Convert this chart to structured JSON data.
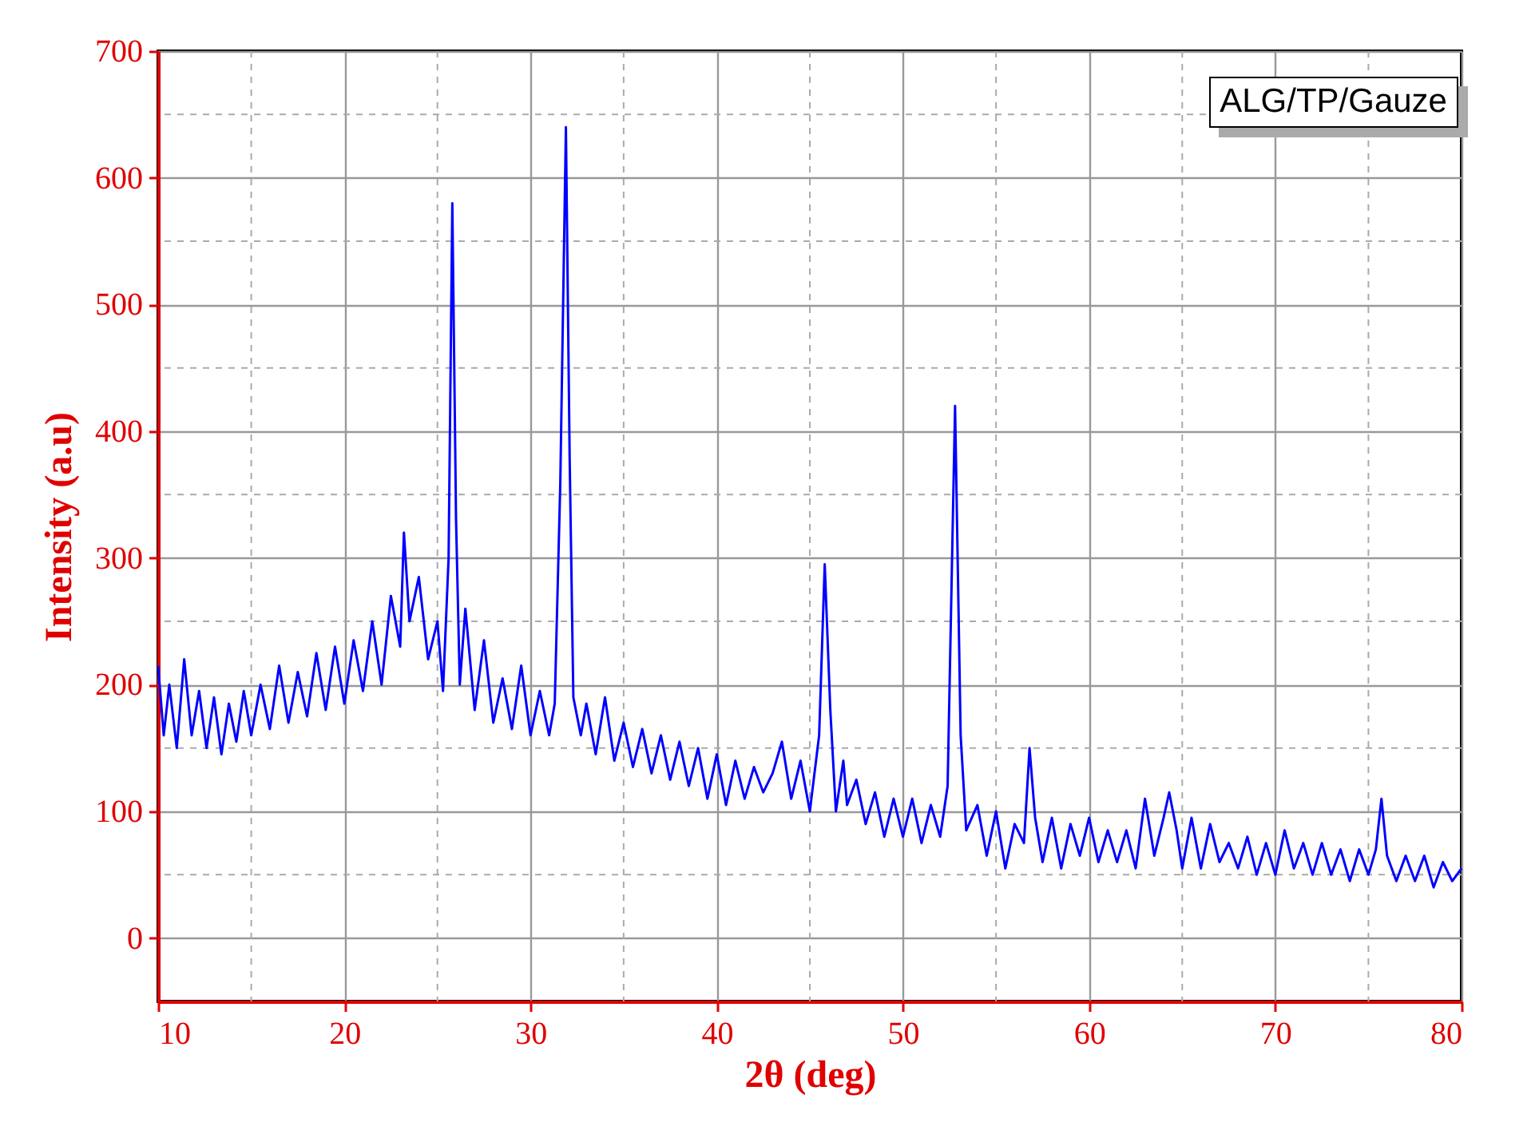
{
  "chart_data": {
    "type": "line",
    "xlabel": "2θ (deg)",
    "ylabel": "Intensity (a.u)",
    "annotations": [
      "ALG/TP/Gauze"
    ],
    "xlim": [
      10,
      80
    ],
    "ylim": [
      -50,
      700
    ],
    "xticks": [
      10,
      20,
      30,
      40,
      50,
      60,
      70,
      80
    ],
    "yticks": [
      0,
      100,
      200,
      300,
      400,
      500,
      600,
      700
    ],
    "grid": true,
    "marker": "none",
    "line_style": "solid",
    "series": [
      {
        "color": "#0000ff",
        "x": [
          10,
          10.3,
          10.6,
          11,
          11.4,
          11.8,
          12.2,
          12.6,
          13,
          13.4,
          13.8,
          14.2,
          14.6,
          15,
          15.5,
          16,
          16.5,
          17,
          17.5,
          18,
          18.5,
          19,
          19.5,
          20,
          20.5,
          21,
          21.5,
          22,
          22.5,
          23,
          23.2,
          23.5,
          24,
          24.5,
          25,
          25.3,
          25.6,
          25.8,
          26,
          26.2,
          26.5,
          27,
          27.5,
          28,
          28.5,
          29,
          29.5,
          30,
          30.5,
          31,
          31.3,
          31.6,
          31.9,
          32.1,
          32.3,
          32.7,
          33,
          33.5,
          34,
          34.5,
          35,
          35.5,
          36,
          36.5,
          37,
          37.5,
          38,
          38.5,
          39,
          39.5,
          40,
          40.5,
          41,
          41.5,
          42,
          42.5,
          43,
          43.5,
          44,
          44.5,
          45,
          45.5,
          45.8,
          46.1,
          46.4,
          46.8,
          47,
          47.5,
          48,
          48.5,
          49,
          49.5,
          50,
          50.5,
          51,
          51.5,
          52,
          52.4,
          52.8,
          53.1,
          53.4,
          54,
          54.5,
          55,
          55.5,
          56,
          56.5,
          56.8,
          57.1,
          57.5,
          58,
          58.5,
          59,
          59.5,
          60,
          60.5,
          61,
          61.5,
          62,
          62.5,
          63,
          63.5,
          64,
          64.3,
          64.7,
          65,
          65.5,
          66,
          66.5,
          67,
          67.5,
          68,
          68.5,
          69,
          69.5,
          70,
          70.5,
          71,
          71.5,
          72,
          72.5,
          73,
          73.5,
          74,
          74.5,
          75,
          75.4,
          75.7,
          76,
          76.5,
          77,
          77.5,
          78,
          78.5,
          79,
          79.5,
          80
        ],
        "values": [
          215,
          160,
          200,
          150,
          220,
          160,
          195,
          150,
          190,
          145,
          185,
          155,
          195,
          160,
          200,
          165,
          215,
          170,
          210,
          175,
          225,
          180,
          230,
          185,
          235,
          195,
          250,
          200,
          270,
          230,
          320,
          250,
          285,
          220,
          250,
          195,
          300,
          580,
          330,
          200,
          260,
          180,
          235,
          170,
          205,
          165,
          215,
          160,
          195,
          160,
          185,
          360,
          640,
          380,
          190,
          160,
          185,
          145,
          190,
          140,
          170,
          135,
          165,
          130,
          160,
          125,
          155,
          120,
          150,
          110,
          145,
          105,
          140,
          110,
          135,
          115,
          130,
          155,
          110,
          140,
          100,
          160,
          295,
          180,
          100,
          140,
          105,
          125,
          90,
          115,
          80,
          110,
          80,
          110,
          75,
          105,
          80,
          120,
          420,
          160,
          85,
          105,
          65,
          100,
          55,
          90,
          75,
          150,
          95,
          60,
          95,
          55,
          90,
          65,
          95,
          60,
          85,
          60,
          85,
          55,
          110,
          65,
          95,
          115,
          85,
          55,
          95,
          55,
          90,
          60,
          75,
          55,
          80,
          50,
          75,
          50,
          85,
          55,
          75,
          50,
          75,
          50,
          70,
          45,
          70,
          50,
          70,
          110,
          65,
          45,
          65,
          45,
          65,
          40,
          60,
          45,
          55
        ]
      }
    ]
  }
}
